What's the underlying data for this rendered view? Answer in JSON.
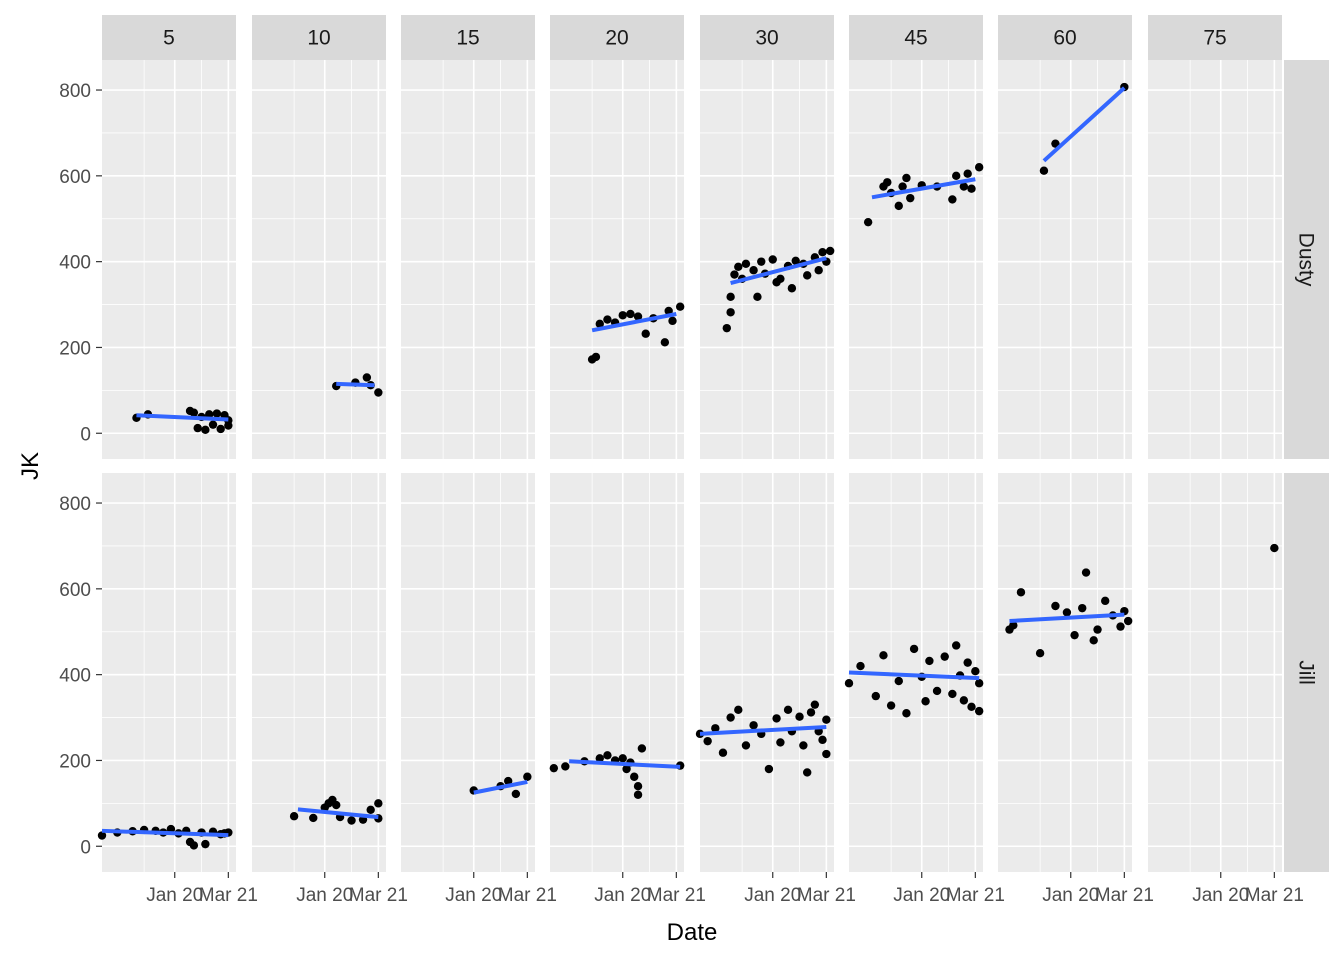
{
  "chart_data": {
    "type": "scatter",
    "xlabel": "Date",
    "ylabel": "JK",
    "x_tick_labels": [
      "Jan 20",
      "Mar 21"
    ],
    "y_ticks": [
      0,
      200,
      400,
      600,
      800
    ],
    "ylim": [
      -60,
      870
    ],
    "x_range": [
      "2018-06",
      "2021-05"
    ],
    "grid": true,
    "colors": {
      "panel": "#ebebeb",
      "strip": "#d9d9d9",
      "points": "#000000",
      "smooth": "#3366ff"
    },
    "column_facets": [
      "5",
      "10",
      "15",
      "20",
      "30",
      "45",
      "60",
      "75"
    ],
    "row_facets": [
      "Dusty",
      "Jill"
    ],
    "panels": [
      {
        "row": "Dusty",
        "col": "5",
        "smooth": [
          [
            "2019-03",
            42
          ],
          [
            "2021-03",
            32
          ]
        ],
        "points": [
          [
            "2019-03",
            36
          ],
          [
            "2019-06",
            44
          ],
          [
            "2020-05",
            52
          ],
          [
            "2020-06",
            48
          ],
          [
            "2020-07",
            12
          ],
          [
            "2020-08",
            38
          ],
          [
            "2020-09",
            8
          ],
          [
            "2020-10",
            44
          ],
          [
            "2020-11",
            20
          ],
          [
            "2020-12",
            46
          ],
          [
            "2021-01",
            10
          ],
          [
            "2021-02",
            42
          ],
          [
            "2021-03",
            30
          ],
          [
            "2021-03",
            18
          ]
        ]
      },
      {
        "row": "Dusty",
        "col": "10",
        "smooth": [
          [
            "2020-04",
            115
          ],
          [
            "2021-02",
            112
          ]
        ],
        "points": [
          [
            "2020-04",
            110
          ],
          [
            "2020-09",
            118
          ],
          [
            "2020-12",
            130
          ],
          [
            "2021-01",
            112
          ],
          [
            "2021-03",
            95
          ]
        ]
      },
      {
        "row": "Dusty",
        "col": "20",
        "smooth": [
          [
            "2019-05",
            240
          ],
          [
            "2021-03",
            278
          ]
        ],
        "points": [
          [
            "2019-05",
            172
          ],
          [
            "2019-06",
            178
          ],
          [
            "2019-07",
            255
          ],
          [
            "2019-09",
            265
          ],
          [
            "2019-11",
            258
          ],
          [
            "2020-01",
            275
          ],
          [
            "2020-03",
            278
          ],
          [
            "2020-05",
            272
          ],
          [
            "2020-07",
            232
          ],
          [
            "2020-09",
            268
          ],
          [
            "2020-12",
            212
          ],
          [
            "2021-01",
            285
          ],
          [
            "2021-02",
            262
          ],
          [
            "2021-04",
            295
          ]
        ]
      },
      {
        "row": "Dusty",
        "col": "30",
        "smooth": [
          [
            "2019-02",
            350
          ],
          [
            "2021-03",
            408
          ]
        ],
        "points": [
          [
            "2019-01",
            245
          ],
          [
            "2019-02",
            282
          ],
          [
            "2019-02",
            318
          ],
          [
            "2019-03",
            370
          ],
          [
            "2019-04",
            388
          ],
          [
            "2019-05",
            360
          ],
          [
            "2019-06",
            395
          ],
          [
            "2019-08",
            380
          ],
          [
            "2019-09",
            318
          ],
          [
            "2019-10",
            400
          ],
          [
            "2019-11",
            372
          ],
          [
            "2020-01",
            405
          ],
          [
            "2020-02",
            352
          ],
          [
            "2020-03",
            360
          ],
          [
            "2020-05",
            390
          ],
          [
            "2020-06",
            338
          ],
          [
            "2020-07",
            402
          ],
          [
            "2020-09",
            395
          ],
          [
            "2020-10",
            368
          ],
          [
            "2020-12",
            410
          ],
          [
            "2021-01",
            380
          ],
          [
            "2021-02",
            422
          ],
          [
            "2021-03",
            400
          ],
          [
            "2021-04",
            425
          ]
        ]
      },
      {
        "row": "Dusty",
        "col": "45",
        "smooth": [
          [
            "2018-12",
            550
          ],
          [
            "2021-03",
            592
          ]
        ],
        "points": [
          [
            "2018-11",
            492
          ],
          [
            "2019-03",
            575
          ],
          [
            "2019-04",
            585
          ],
          [
            "2019-05",
            560
          ],
          [
            "2019-07",
            530
          ],
          [
            "2019-08",
            575
          ],
          [
            "2019-09",
            595
          ],
          [
            "2019-10",
            548
          ],
          [
            "2020-01",
            578
          ],
          [
            "2020-05",
            575
          ],
          [
            "2020-09",
            545
          ],
          [
            "2020-10",
            600
          ],
          [
            "2020-12",
            575
          ],
          [
            "2021-01",
            605
          ],
          [
            "2021-02",
            570
          ],
          [
            "2021-04",
            620
          ]
        ]
      },
      {
        "row": "Dusty",
        "col": "60",
        "smooth": [
          [
            "2019-06",
            635
          ],
          [
            "2021-03",
            805
          ]
        ],
        "points": [
          [
            "2019-06",
            612
          ],
          [
            "2019-09",
            675
          ],
          [
            "2021-03",
            807
          ]
        ]
      },
      {
        "row": "Jill",
        "col": "5",
        "smooth": [
          [
            "2018-06",
            36
          ],
          [
            "2021-03",
            26
          ]
        ],
        "points": [
          [
            "2018-06",
            25
          ],
          [
            "2018-10",
            32
          ],
          [
            "2019-02",
            35
          ],
          [
            "2019-05",
            38
          ],
          [
            "2019-08",
            36
          ],
          [
            "2019-10",
            32
          ],
          [
            "2019-12",
            40
          ],
          [
            "2020-02",
            30
          ],
          [
            "2020-04",
            36
          ],
          [
            "2020-05",
            10
          ],
          [
            "2020-06",
            2
          ],
          [
            "2020-08",
            32
          ],
          [
            "2020-09",
            5
          ],
          [
            "2020-11",
            34
          ],
          [
            "2021-01",
            28
          ],
          [
            "2021-02",
            30
          ],
          [
            "2021-03",
            32
          ]
        ]
      },
      {
        "row": "Jill",
        "col": "10",
        "smooth": [
          [
            "2019-06",
            86
          ],
          [
            "2021-03",
            68
          ]
        ],
        "points": [
          [
            "2019-05",
            70
          ],
          [
            "2019-10",
            66
          ],
          [
            "2020-01",
            90
          ],
          [
            "2020-02",
            100
          ],
          [
            "2020-03",
            108
          ],
          [
            "2020-04",
            96
          ],
          [
            "2020-05",
            68
          ],
          [
            "2020-08",
            60
          ],
          [
            "2020-11",
            62
          ],
          [
            "2021-01",
            85
          ],
          [
            "2021-03",
            100
          ],
          [
            "2021-03",
            65
          ]
        ]
      },
      {
        "row": "Jill",
        "col": "15",
        "smooth": [
          [
            "2020-01",
            125
          ],
          [
            "2021-03",
            150
          ]
        ],
        "points": [
          [
            "2020-01",
            130
          ],
          [
            "2020-08",
            140
          ],
          [
            "2020-10",
            152
          ],
          [
            "2020-12",
            122
          ],
          [
            "2021-03",
            162
          ]
        ]
      },
      {
        "row": "Jill",
        "col": "20",
        "smooth": [
          [
            "2018-11",
            198
          ],
          [
            "2021-04",
            185
          ]
        ],
        "points": [
          [
            "2018-07",
            182
          ],
          [
            "2018-10",
            186
          ],
          [
            "2019-03",
            198
          ],
          [
            "2019-07",
            205
          ],
          [
            "2019-09",
            212
          ],
          [
            "2019-11",
            200
          ],
          [
            "2020-01",
            205
          ],
          [
            "2020-02",
            180
          ],
          [
            "2020-03",
            195
          ],
          [
            "2020-04",
            162
          ],
          [
            "2020-05",
            120
          ],
          [
            "2020-05",
            140
          ],
          [
            "2020-06",
            228
          ],
          [
            "2021-04",
            188
          ]
        ]
      },
      {
        "row": "Jill",
        "col": "30",
        "smooth": [
          [
            "2018-06",
            262
          ],
          [
            "2021-03",
            278
          ]
        ],
        "points": [
          [
            "2018-06",
            262
          ],
          [
            "2018-08",
            245
          ],
          [
            "2018-10",
            275
          ],
          [
            "2018-12",
            218
          ],
          [
            "2019-02",
            300
          ],
          [
            "2019-04",
            318
          ],
          [
            "2019-06",
            235
          ],
          [
            "2019-08",
            282
          ],
          [
            "2019-10",
            262
          ],
          [
            "2019-12",
            180
          ],
          [
            "2020-02",
            298
          ],
          [
            "2020-03",
            242
          ],
          [
            "2020-05",
            318
          ],
          [
            "2020-06",
            268
          ],
          [
            "2020-08",
            302
          ],
          [
            "2020-09",
            235
          ],
          [
            "2020-10",
            172
          ],
          [
            "2020-11",
            312
          ],
          [
            "2020-12",
            330
          ],
          [
            "2021-01",
            268
          ],
          [
            "2021-02",
            248
          ],
          [
            "2021-03",
            295
          ],
          [
            "2021-03",
            215
          ]
        ]
      },
      {
        "row": "Jill",
        "col": "45",
        "smooth": [
          [
            "2018-06",
            405
          ],
          [
            "2021-04",
            392
          ]
        ],
        "points": [
          [
            "2018-06",
            380
          ],
          [
            "2018-09",
            420
          ],
          [
            "2019-01",
            350
          ],
          [
            "2019-03",
            445
          ],
          [
            "2019-05",
            328
          ],
          [
            "2019-07",
            385
          ],
          [
            "2019-09",
            310
          ],
          [
            "2019-11",
            460
          ],
          [
            "2020-01",
            395
          ],
          [
            "2020-02",
            338
          ],
          [
            "2020-03",
            432
          ],
          [
            "2020-05",
            362
          ],
          [
            "2020-07",
            442
          ],
          [
            "2020-09",
            355
          ],
          [
            "2020-10",
            468
          ],
          [
            "2020-11",
            398
          ],
          [
            "2020-12",
            340
          ],
          [
            "2021-01",
            428
          ],
          [
            "2021-02",
            325
          ],
          [
            "2021-03",
            408
          ],
          [
            "2021-04",
            315
          ],
          [
            "2021-04",
            380
          ]
        ]
      },
      {
        "row": "Jill",
        "col": "60",
        "smooth": [
          [
            "2018-09",
            525
          ],
          [
            "2021-03",
            540
          ]
        ],
        "points": [
          [
            "2018-09",
            505
          ],
          [
            "2018-10",
            515
          ],
          [
            "2018-12",
            592
          ],
          [
            "2019-05",
            450
          ],
          [
            "2019-09",
            560
          ],
          [
            "2019-12",
            545
          ],
          [
            "2020-02",
            492
          ],
          [
            "2020-04",
            555
          ],
          [
            "2020-05",
            638
          ],
          [
            "2020-07",
            480
          ],
          [
            "2020-08",
            505
          ],
          [
            "2020-10",
            572
          ],
          [
            "2020-12",
            538
          ],
          [
            "2021-02",
            512
          ],
          [
            "2021-03",
            548
          ],
          [
            "2021-04",
            525
          ]
        ]
      },
      {
        "row": "Jill",
        "col": "75",
        "smooth": [],
        "points": [
          [
            "2021-03",
            695
          ]
        ]
      }
    ]
  }
}
